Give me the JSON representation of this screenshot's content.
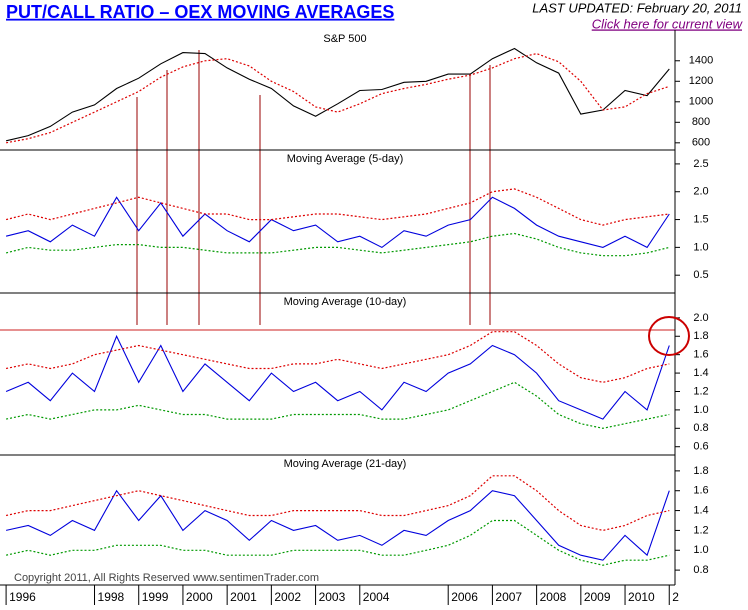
{
  "header": {
    "title": "PUT/CALL RATIO – OEX MOVING AVERAGES",
    "last_updated": "LAST UPDATED:  February 20, 2011",
    "link": "Click here for current view"
  },
  "footer": {
    "copyright": "Copyright 2011, All Rights Reserved  www.sentimenTrader.com"
  },
  "chart_data": [
    {
      "type": "line",
      "title": "S&P 500",
      "x": [
        1996,
        1996.5,
        1997,
        1997.5,
        1998,
        1998.5,
        1999,
        1999.5,
        2000,
        2000.5,
        2001,
        2001.5,
        2002,
        2002.5,
        2003,
        2003.5,
        2004,
        2004.5,
        2005,
        2005.5,
        2006,
        2006.5,
        2007,
        2007.5,
        2008,
        2008.5,
        2009,
        2009.5,
        2010,
        2010.5,
        2011
      ],
      "xlim": [
        1995.93,
        2011.13
      ],
      "series": [
        {
          "color": "#000000",
          "style": "solid",
          "values": [
            620,
            670,
            760,
            900,
            970,
            1130,
            1230,
            1370,
            1480,
            1470,
            1330,
            1220,
            1130,
            960,
            860,
            980,
            1110,
            1120,
            1190,
            1200,
            1270,
            1270,
            1420,
            1520,
            1380,
            1280,
            880,
            920,
            1110,
            1060,
            1320
          ]
        },
        {
          "color": "#dd0000",
          "style": "dotted",
          "values": [
            600,
            640,
            700,
            800,
            900,
            1000,
            1100,
            1240,
            1340,
            1400,
            1420,
            1350,
            1200,
            1100,
            950,
            900,
            980,
            1080,
            1130,
            1170,
            1220,
            1260,
            1330,
            1420,
            1470,
            1390,
            1200,
            920,
            950,
            1080,
            1150
          ]
        }
      ],
      "ylim": [
        530,
        1700
      ],
      "yticks": [
        600,
        800,
        1000,
        1200,
        1400
      ]
    },
    {
      "type": "line",
      "title": "Moving Average (5-day)",
      "x": [
        1996,
        1996.5,
        1997,
        1997.5,
        1998,
        1998.5,
        1999,
        1999.5,
        2000,
        2000.5,
        2001,
        2001.5,
        2002,
        2002.5,
        2003,
        2003.5,
        2004,
        2004.5,
        2005,
        2005.5,
        2006,
        2006.5,
        2007,
        2007.5,
        2008,
        2008.5,
        2009,
        2009.5,
        2010,
        2010.5,
        2011
      ],
      "xlim": [
        1995.93,
        2011.13
      ],
      "series": [
        {
          "color": "#0000dd",
          "style": "solid",
          "values": [
            1.2,
            1.3,
            1.1,
            1.4,
            1.2,
            1.9,
            1.3,
            1.8,
            1.2,
            1.6,
            1.3,
            1.1,
            1.5,
            1.3,
            1.4,
            1.1,
            1.2,
            1.0,
            1.3,
            1.2,
            1.4,
            1.5,
            1.9,
            1.7,
            1.4,
            1.2,
            1.1,
            1.0,
            1.2,
            1.0,
            1.6
          ]
        },
        {
          "color": "#dd0000",
          "style": "dotted",
          "values": [
            1.5,
            1.6,
            1.5,
            1.6,
            1.7,
            1.8,
            1.9,
            1.8,
            1.7,
            1.6,
            1.6,
            1.5,
            1.5,
            1.55,
            1.6,
            1.6,
            1.55,
            1.5,
            1.55,
            1.6,
            1.7,
            1.8,
            2.0,
            2.05,
            1.9,
            1.7,
            1.5,
            1.4,
            1.5,
            1.55,
            1.6
          ]
        },
        {
          "color": "#009900",
          "style": "dotted",
          "values": [
            0.9,
            1.0,
            0.95,
            0.95,
            1.0,
            1.05,
            1.05,
            1.0,
            1.0,
            0.95,
            0.9,
            0.9,
            0.9,
            0.95,
            1.0,
            1.0,
            0.95,
            0.9,
            0.95,
            1.0,
            1.05,
            1.1,
            1.2,
            1.25,
            1.15,
            1.0,
            0.9,
            0.85,
            0.85,
            0.9,
            1.0
          ]
        }
      ],
      "ylim": [
        0.18,
        2.75
      ],
      "yticks": [
        0.5,
        {
          "value": 1,
          "label": "1.0"
        },
        1.5,
        {
          "value": 2,
          "label": "2.0"
        },
        2.5
      ]
    },
    {
      "type": "line",
      "title": "Moving Average (10-day)",
      "x": [
        1996,
        1996.5,
        1997,
        1997.5,
        1998,
        1998.5,
        1999,
        1999.5,
        2000,
        2000.5,
        2001,
        2001.5,
        2002,
        2002.5,
        2003,
        2003.5,
        2004,
        2004.5,
        2005,
        2005.5,
        2006,
        2006.5,
        2007,
        2007.5,
        2008,
        2008.5,
        2009,
        2009.5,
        2010,
        2010.5,
        2011
      ],
      "xlim": [
        1995.93,
        2011.13
      ],
      "series": [
        {
          "color": "#0000dd",
          "style": "solid",
          "values": [
            1.2,
            1.3,
            1.1,
            1.4,
            1.2,
            1.8,
            1.3,
            1.7,
            1.2,
            1.5,
            1.3,
            1.1,
            1.4,
            1.2,
            1.3,
            1.1,
            1.2,
            1.0,
            1.3,
            1.2,
            1.4,
            1.5,
            1.7,
            1.6,
            1.4,
            1.1,
            1.0,
            0.9,
            1.2,
            1.0,
            1.7
          ]
        },
        {
          "color": "#dd0000",
          "style": "dotted",
          "values": [
            1.45,
            1.5,
            1.45,
            1.5,
            1.6,
            1.65,
            1.7,
            1.65,
            1.6,
            1.55,
            1.5,
            1.45,
            1.45,
            1.5,
            1.5,
            1.55,
            1.5,
            1.45,
            1.5,
            1.55,
            1.6,
            1.7,
            1.85,
            1.85,
            1.7,
            1.5,
            1.35,
            1.3,
            1.35,
            1.45,
            1.5
          ]
        },
        {
          "color": "#009900",
          "style": "dotted",
          "values": [
            0.9,
            0.95,
            0.9,
            0.95,
            1.0,
            1.0,
            1.05,
            1.0,
            0.95,
            0.95,
            0.9,
            0.9,
            0.9,
            0.95,
            0.95,
            0.95,
            0.95,
            0.9,
            0.9,
            0.95,
            1.0,
            1.1,
            1.2,
            1.3,
            1.15,
            0.95,
            0.85,
            0.8,
            0.85,
            0.9,
            0.95
          ]
        }
      ],
      "ylim": [
        0.51,
        2.27
      ],
      "yticks": [
        0.6,
        0.8,
        {
          "value": 1,
          "label": "1.0"
        },
        1.2,
        1.4,
        1.6,
        1.8,
        {
          "value": 2,
          "label": "2.0"
        }
      ]
    },
    {
      "type": "line",
      "title": "Moving Average (21-day)",
      "x": [
        1996,
        1996.5,
        1997,
        1997.5,
        1998,
        1998.5,
        1999,
        1999.5,
        2000,
        2000.5,
        2001,
        2001.5,
        2002,
        2002.5,
        2003,
        2003.5,
        2004,
        2004.5,
        2005,
        2005.5,
        2006,
        2006.5,
        2007,
        2007.5,
        2008,
        2008.5,
        2009,
        2009.5,
        2010,
        2010.5,
        2011
      ],
      "xlim": [
        1995.93,
        2011.13
      ],
      "xticks": [
        1996,
        1998,
        1999,
        2000,
        2001,
        2002,
        2003,
        2004,
        2006,
        2007,
        2008,
        2009,
        2010,
        {
          "value": 2011,
          "label": "2"
        }
      ],
      "series": [
        {
          "color": "#0000dd",
          "style": "solid",
          "values": [
            1.2,
            1.25,
            1.15,
            1.3,
            1.2,
            1.6,
            1.3,
            1.55,
            1.2,
            1.4,
            1.3,
            1.1,
            1.3,
            1.2,
            1.25,
            1.1,
            1.15,
            1.05,
            1.2,
            1.15,
            1.3,
            1.4,
            1.6,
            1.55,
            1.3,
            1.05,
            0.95,
            0.9,
            1.15,
            0.95,
            1.6
          ]
        },
        {
          "color": "#dd0000",
          "style": "dotted",
          "values": [
            1.35,
            1.4,
            1.4,
            1.45,
            1.5,
            1.55,
            1.6,
            1.55,
            1.5,
            1.45,
            1.4,
            1.35,
            1.35,
            1.4,
            1.4,
            1.4,
            1.4,
            1.35,
            1.35,
            1.4,
            1.45,
            1.55,
            1.75,
            1.75,
            1.6,
            1.4,
            1.25,
            1.2,
            1.25,
            1.35,
            1.4
          ]
        },
        {
          "color": "#009900",
          "style": "dotted",
          "values": [
            0.95,
            1.0,
            0.95,
            1.0,
            1.0,
            1.05,
            1.05,
            1.05,
            1.0,
            1.0,
            0.95,
            0.95,
            0.95,
            1.0,
            1.0,
            1.0,
            1.0,
            0.95,
            0.95,
            1.0,
            1.05,
            1.15,
            1.3,
            1.3,
            1.15,
            1.0,
            0.9,
            0.85,
            0.9,
            0.9,
            0.95
          ]
        }
      ],
      "ylim": [
        0.65,
        1.96
      ],
      "yticks": [
        0.8,
        {
          "value": 1,
          "label": "1.0"
        },
        1.2,
        1.4,
        1.6,
        1.8
      ]
    }
  ]
}
